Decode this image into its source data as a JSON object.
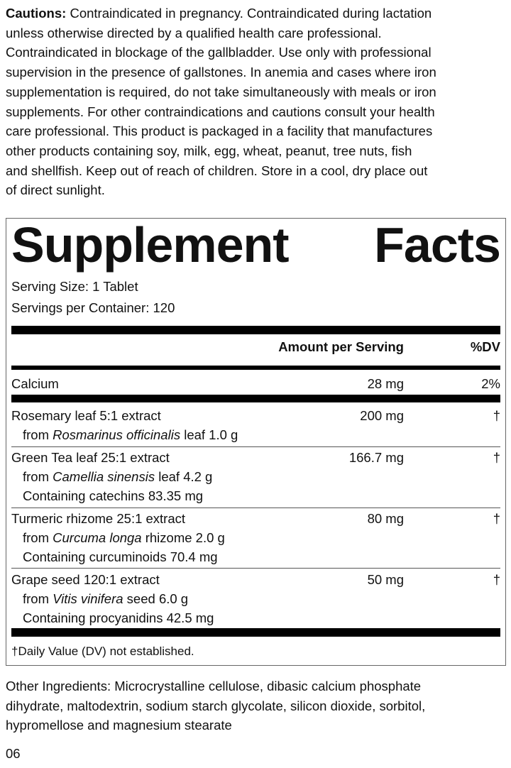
{
  "cautions": {
    "label": "Cautions:",
    "lines": [
      " Contraindicated in pregnancy. Contraindicated during lactation",
      "unless otherwise directed by a qualified health care professional.",
      "Contraindicated in blockage of the gallbladder. Use only with professional",
      "supervision in the presence of gallstones. In anemia and cases where iron",
      "supplementation is required, do not take simultaneously with meals or iron",
      "supplements. For other contraindications and cautions consult your health",
      "care professional. This product is packaged in a facility that manufactures",
      "other products containing soy, milk, egg, wheat, peanut, tree nuts, fish",
      "and shellfish. Keep out of reach of children. Store in a cool, dry place out",
      "of direct sunlight."
    ]
  },
  "facts": {
    "title_word1": "Supplement",
    "title_word2": "Facts",
    "serving_size": "Serving Size: 1 Tablet",
    "servings_per_container": "Servings per Container: 120",
    "header_amount": "Amount per Serving",
    "header_dv": "%DV",
    "calcium": {
      "name": "Calcium",
      "amount": "28 mg",
      "dv": "2%"
    },
    "rows": [
      {
        "name": "Rosemary leaf 5:1 extract",
        "amount": "200 mg",
        "dv": "†",
        "from": {
          "pre": "from ",
          "latin": "Rosmarinus officinalis",
          "post": " leaf 1.0 g"
        }
      },
      {
        "name": "Green Tea leaf 25:1 extract",
        "amount": "166.7 mg",
        "dv": "†",
        "from": {
          "pre": "from ",
          "latin": "Camellia sinensis",
          "post": " leaf 4.2 g"
        },
        "containing": "Containing catechins 83.35 mg"
      },
      {
        "name": "Turmeric rhizome 25:1 extract",
        "amount": "80 mg",
        "dv": "†",
        "from": {
          "pre": "from ",
          "latin": "Curcuma longa",
          "post": " rhizome 2.0 g"
        },
        "containing": "Containing curcuminoids 70.4 mg"
      },
      {
        "name": "Grape seed 120:1 extract",
        "amount": "50 mg",
        "dv": "†",
        "from": {
          "pre": "from ",
          "latin": "Vitis vinifera",
          "post": " seed 6.0 g"
        },
        "containing": "Containing procyanidins 42.5 mg"
      }
    ],
    "footnote": "†Daily Value (DV) not established."
  },
  "other_ingredients": [
    "Other Ingredients: Microcrystalline cellulose, dibasic calcium phosphate",
    "dihydrate, maltodextrin, sodium starch glycolate, silicon dioxide, sorbitol,",
    "hypromellose and magnesium stearate"
  ],
  "page_code": "06"
}
